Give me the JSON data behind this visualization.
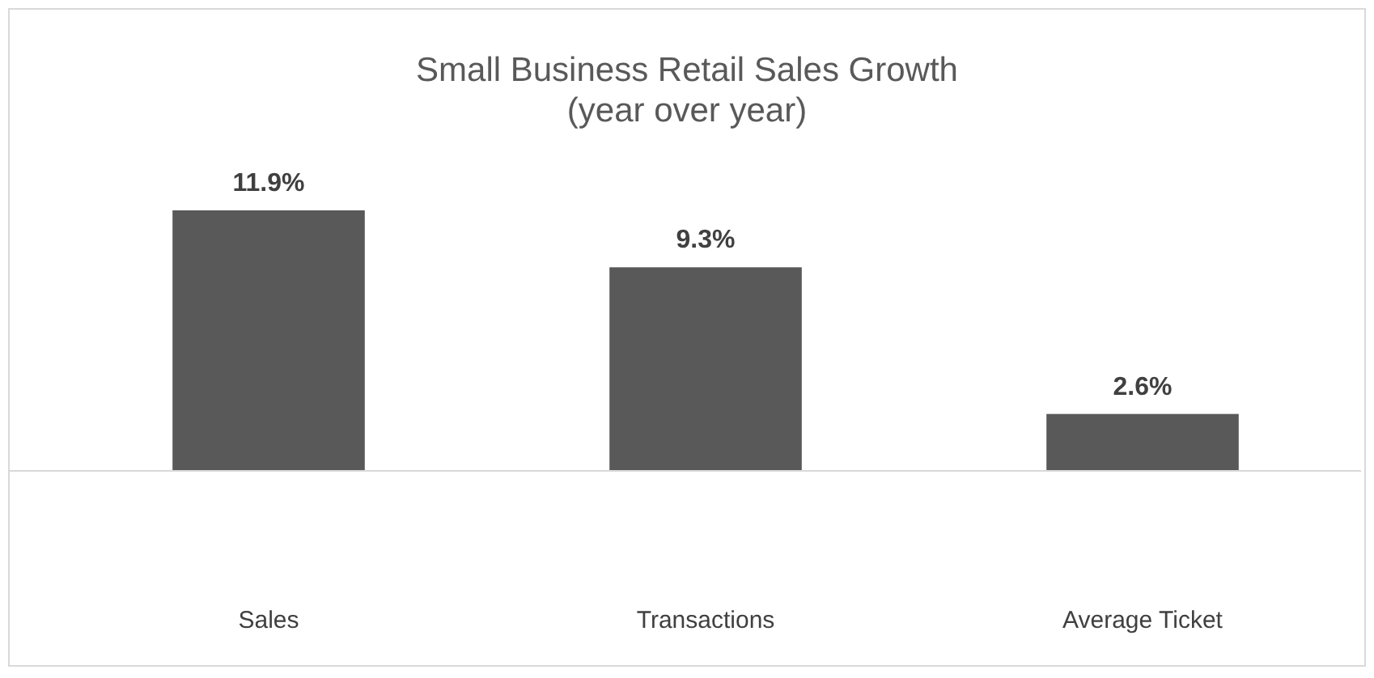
{
  "chart_data": {
    "type": "bar",
    "title": "Small Business Retail Sales Growth\n(year over year)",
    "categories": [
      "Sales",
      "Transactions",
      "Average Ticket"
    ],
    "values": [
      11.9,
      9.3,
      2.6
    ],
    "value_labels": [
      "11.9%",
      "9.3%",
      "2.6%"
    ],
    "color": "#595959"
  }
}
